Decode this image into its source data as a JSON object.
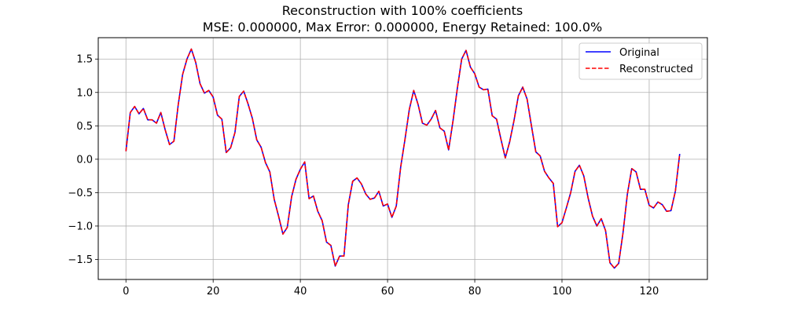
{
  "chart_data": {
    "type": "line",
    "title": "Reconstruction with 100% coefficients",
    "subtitle": "MSE: 0.000000, Max Error: 0.000000, Energy Retained: 100.0%",
    "xlabel": "",
    "ylabel": "",
    "xlim": [
      -6.35,
      133.35
    ],
    "ylim": [
      -1.8,
      1.82
    ],
    "xticks": [
      0,
      20,
      40,
      60,
      80,
      100,
      120
    ],
    "xtick_labels": [
      "0",
      "20",
      "40",
      "60",
      "80",
      "100",
      "120"
    ],
    "yticks": [
      1.5,
      1.0,
      0.5,
      0.0,
      -0.5,
      -1.0,
      -1.5
    ],
    "ytick_labels": [
      "1.5",
      "1.0",
      "0.5",
      "0.0",
      "−0.5",
      "−1.0",
      "−1.5"
    ],
    "grid": true,
    "legend_position": "top-right",
    "x": [
      0,
      1,
      2,
      3,
      4,
      5,
      6,
      7,
      8,
      9,
      10,
      11,
      12,
      13,
      14,
      15,
      16,
      17,
      18,
      19,
      20,
      21,
      22,
      23,
      24,
      25,
      26,
      27,
      28,
      29,
      30,
      31,
      32,
      33,
      34,
      35,
      36,
      37,
      38,
      39,
      40,
      41,
      42,
      43,
      44,
      45,
      46,
      47,
      48,
      49,
      50,
      51,
      52,
      53,
      54,
      55,
      56,
      57,
      58,
      59,
      60,
      61,
      62,
      63,
      64,
      65,
      66,
      67,
      68,
      69,
      70,
      71,
      72,
      73,
      74,
      75,
      76,
      77,
      78,
      79,
      80,
      81,
      82,
      83,
      84,
      85,
      86,
      87,
      88,
      89,
      90,
      91,
      92,
      93,
      94,
      95,
      96,
      97,
      98,
      99,
      100,
      101,
      102,
      103,
      104,
      105,
      106,
      107,
      108,
      109,
      110,
      111,
      112,
      113,
      114,
      115,
      116,
      117,
      118,
      119,
      120,
      121,
      122,
      123,
      124,
      125,
      126,
      127
    ],
    "series": [
      {
        "name": "Original",
        "color": "#0000ff",
        "dash": "solid",
        "values": [
          0.12,
          0.7,
          0.79,
          0.68,
          0.76,
          0.59,
          0.59,
          0.54,
          0.7,
          0.44,
          0.22,
          0.27,
          0.82,
          1.27,
          1.5,
          1.65,
          1.45,
          1.13,
          0.99,
          1.03,
          0.93,
          0.66,
          0.6,
          0.1,
          0.17,
          0.4,
          0.94,
          1.02,
          0.83,
          0.61,
          0.29,
          0.18,
          -0.05,
          -0.19,
          -0.6,
          -0.85,
          -1.12,
          -1.02,
          -0.56,
          -0.3,
          -0.15,
          -0.04,
          -0.59,
          -0.55,
          -0.78,
          -0.92,
          -1.24,
          -1.29,
          -1.6,
          -1.45,
          -1.45,
          -0.68,
          -0.33,
          -0.28,
          -0.37,
          -0.52,
          -0.6,
          -0.58,
          -0.48,
          -0.7,
          -0.67,
          -0.87,
          -0.7,
          -0.12,
          0.3,
          0.75,
          1.03,
          0.82,
          0.54,
          0.51,
          0.6,
          0.73,
          0.47,
          0.42,
          0.14,
          0.57,
          1.06,
          1.5,
          1.63,
          1.38,
          1.28,
          1.08,
          1.04,
          1.05,
          0.65,
          0.6,
          0.3,
          0.02,
          0.26,
          0.58,
          0.95,
          1.08,
          0.9,
          0.5,
          0.11,
          0.05,
          -0.18,
          -0.28,
          -0.36,
          -1.01,
          -0.95,
          -0.73,
          -0.5,
          -0.18,
          -0.09,
          -0.25,
          -0.58,
          -0.85,
          -1.0,
          -0.89,
          -1.07,
          -1.55,
          -1.63,
          -1.56,
          -1.1,
          -0.52,
          -0.14,
          -0.19,
          -0.45,
          -0.45,
          -0.69,
          -0.73,
          -0.64,
          -0.68,
          -0.78,
          -0.77,
          -0.48,
          0.08
        ]
      },
      {
        "name": "Reconstructed",
        "color": "#ff0000",
        "dash": "dashed",
        "values": [
          0.12,
          0.7,
          0.79,
          0.68,
          0.76,
          0.59,
          0.59,
          0.54,
          0.7,
          0.44,
          0.22,
          0.27,
          0.82,
          1.27,
          1.5,
          1.65,
          1.45,
          1.13,
          0.99,
          1.03,
          0.93,
          0.66,
          0.6,
          0.1,
          0.17,
          0.4,
          0.94,
          1.02,
          0.83,
          0.61,
          0.29,
          0.18,
          -0.05,
          -0.19,
          -0.6,
          -0.85,
          -1.12,
          -1.02,
          -0.56,
          -0.3,
          -0.15,
          -0.04,
          -0.59,
          -0.55,
          -0.78,
          -0.92,
          -1.24,
          -1.29,
          -1.6,
          -1.45,
          -1.45,
          -0.68,
          -0.33,
          -0.28,
          -0.37,
          -0.52,
          -0.6,
          -0.58,
          -0.48,
          -0.7,
          -0.67,
          -0.87,
          -0.7,
          -0.12,
          0.3,
          0.75,
          1.03,
          0.82,
          0.54,
          0.51,
          0.6,
          0.73,
          0.47,
          0.42,
          0.14,
          0.57,
          1.06,
          1.5,
          1.63,
          1.38,
          1.28,
          1.08,
          1.04,
          1.05,
          0.65,
          0.6,
          0.3,
          0.02,
          0.26,
          0.58,
          0.95,
          1.08,
          0.9,
          0.5,
          0.11,
          0.05,
          -0.18,
          -0.28,
          -0.36,
          -1.01,
          -0.95,
          -0.73,
          -0.5,
          -0.18,
          -0.09,
          -0.25,
          -0.58,
          -0.85,
          -1.0,
          -0.89,
          -1.07,
          -1.55,
          -1.63,
          -1.56,
          -1.1,
          -0.52,
          -0.14,
          -0.19,
          -0.45,
          -0.45,
          -0.69,
          -0.73,
          -0.64,
          -0.68,
          -0.78,
          -0.77,
          -0.48,
          0.08
        ]
      }
    ]
  }
}
